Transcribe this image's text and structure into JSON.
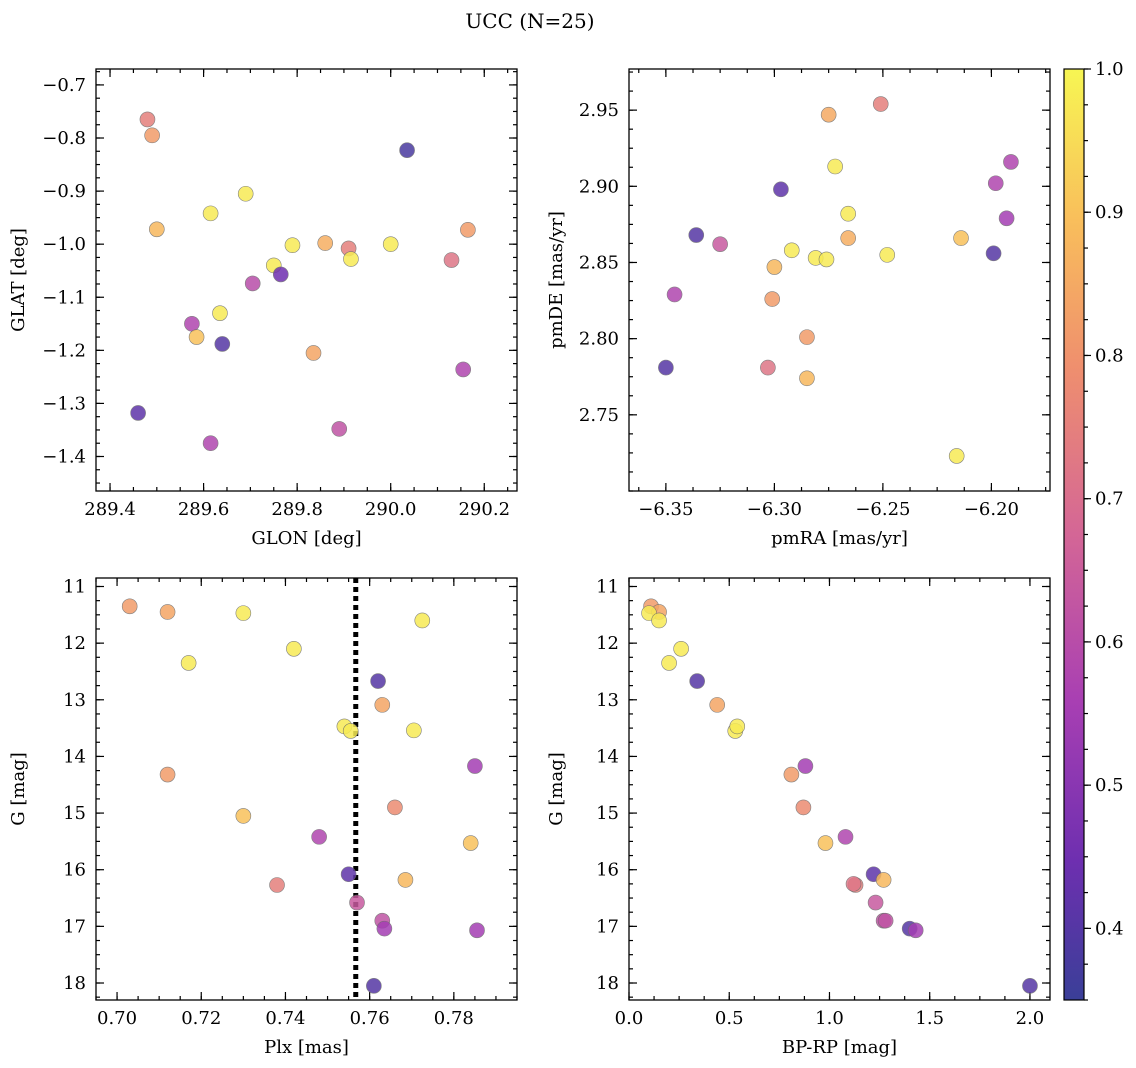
{
  "title": "UCC (N=25)",
  "colorbar": {
    "min": 0.35,
    "max": 1.0,
    "ticks": [
      "0.4",
      "0.5",
      "0.6",
      "0.7",
      "0.8",
      "0.9",
      "1.0"
    ],
    "tick_values": [
      0.4,
      0.5,
      0.6,
      0.7,
      0.8,
      0.9,
      1.0
    ],
    "colormap": "plasma"
  },
  "chart_data": [
    {
      "type": "scatter",
      "xlabel": "GLON [deg]",
      "ylabel": "GLAT [deg]",
      "xlim": [
        289.37,
        290.27
      ],
      "ylim": [
        -1.465,
        -0.67
      ],
      "xticks": [
        289.4,
        289.6,
        289.8,
        290.0,
        290.2
      ],
      "xtick_labels": [
        "289.4",
        "289.6",
        "289.8",
        "290.0",
        "290.2"
      ],
      "yticks": [
        -1.4,
        -1.3,
        -1.2,
        -1.1,
        -1.0,
        -0.9,
        -0.8,
        -0.7
      ],
      "ytick_labels": [
        "−1.4",
        "−1.3",
        "−1.2",
        "−1.1",
        "−1.0",
        "−0.9",
        "−0.8",
        "−0.7"
      ],
      "x": [
        289.48,
        289.49,
        289.5,
        289.46,
        289.575,
        289.585,
        289.615,
        289.615,
        289.635,
        289.64,
        289.69,
        289.705,
        289.75,
        289.765,
        289.79,
        289.835,
        289.86,
        289.89,
        289.91,
        289.915,
        290.0,
        290.035,
        290.13,
        290.155,
        290.165
      ],
      "y": [
        -0.765,
        -0.795,
        -0.972,
        -1.318,
        -1.15,
        -1.175,
        -0.942,
        -1.375,
        -1.13,
        -1.188,
        -0.905,
        -1.074,
        -1.04,
        -1.057,
        -1.002,
        -1.205,
        -0.998,
        -1.348,
        -1.008,
        -1.028,
        -1.0,
        -0.823,
        -1.03,
        -1.236,
        -0.973
      ],
      "color": [
        0.75,
        0.82,
        0.88,
        0.42,
        0.58,
        0.9,
        0.98,
        0.58,
        0.98,
        0.4,
        0.98,
        0.6,
        0.98,
        0.45,
        0.98,
        0.84,
        0.86,
        0.62,
        0.75,
        0.98,
        0.98,
        0.38,
        0.72,
        0.58,
        0.82
      ]
    },
    {
      "type": "scatter",
      "xlabel": "pmRA [mas/yr]",
      "ylabel": "pmDE [mas/yr]",
      "xlim": [
        -6.367,
        -6.173
      ],
      "ylim": [
        2.7,
        2.977
      ],
      "xticks": [
        -6.35,
        -6.3,
        -6.25,
        -6.2
      ],
      "xtick_labels": [
        "−6.35",
        "−6.30",
        "−6.25",
        "−6.20"
      ],
      "yticks": [
        2.75,
        2.8,
        2.85,
        2.9,
        2.95
      ],
      "ytick_labels": [
        "2.75",
        "2.80",
        "2.85",
        "2.90",
        "2.95"
      ],
      "x": [
        -6.35,
        -6.346,
        -6.336,
        -6.325,
        -6.303,
        -6.301,
        -6.3,
        -6.297,
        -6.292,
        -6.285,
        -6.285,
        -6.281,
        -6.276,
        -6.275,
        -6.272,
        -6.266,
        -6.266,
        -6.251,
        -6.248,
        -6.216,
        -6.214,
        -6.199,
        -6.198,
        -6.193,
        -6.191
      ],
      "y": [
        2.781,
        2.829,
        2.868,
        2.862,
        2.781,
        2.826,
        2.847,
        2.898,
        2.858,
        2.801,
        2.774,
        2.853,
        2.852,
        2.947,
        2.913,
        2.882,
        2.866,
        2.954,
        2.855,
        2.723,
        2.866,
        2.856,
        2.902,
        2.879,
        2.916
      ],
      "color": [
        0.4,
        0.58,
        0.4,
        0.64,
        0.72,
        0.82,
        0.88,
        0.42,
        0.98,
        0.82,
        0.88,
        0.98,
        0.98,
        0.85,
        0.98,
        0.98,
        0.86,
        0.75,
        0.98,
        0.98,
        0.9,
        0.4,
        0.58,
        0.55,
        0.58
      ]
    },
    {
      "type": "scatter",
      "xlabel": "Plx [mas]",
      "ylabel": "G [mag]",
      "xlim": [
        0.695,
        0.795
      ],
      "ylim": [
        18.3,
        10.85
      ],
      "xticks": [
        0.7,
        0.72,
        0.74,
        0.76,
        0.78
      ],
      "xtick_labels": [
        "0.70",
        "0.72",
        "0.74",
        "0.76",
        "0.78"
      ],
      "yticks": [
        11,
        12,
        13,
        14,
        15,
        16,
        17,
        18
      ],
      "ytick_labels": [
        "11",
        "12",
        "13",
        "14",
        "15",
        "16",
        "17",
        "18"
      ],
      "vline": 0.7567,
      "x": [
        0.703,
        0.712,
        0.712,
        0.717,
        0.73,
        0.73,
        0.738,
        0.742,
        0.748,
        0.754,
        0.755,
        0.7555,
        0.757,
        0.761,
        0.762,
        0.763,
        0.763,
        0.7635,
        0.766,
        0.7685,
        0.7705,
        0.7725,
        0.784,
        0.785,
        0.7855
      ],
      "y": [
        11.35,
        11.45,
        14.32,
        12.35,
        11.47,
        15.05,
        16.27,
        12.1,
        15.42,
        13.47,
        16.08,
        13.55,
        16.58,
        18.05,
        12.67,
        13.09,
        16.9,
        17.04,
        14.9,
        16.18,
        13.54,
        11.6,
        15.53,
        14.17,
        17.07
      ],
      "color": [
        0.82,
        0.84,
        0.82,
        0.98,
        0.98,
        0.9,
        0.75,
        0.98,
        0.58,
        0.98,
        0.42,
        0.98,
        0.64,
        0.4,
        0.4,
        0.84,
        0.62,
        0.55,
        0.78,
        0.88,
        0.98,
        0.98,
        0.9,
        0.55,
        0.55
      ]
    },
    {
      "type": "scatter",
      "xlabel": "BP-RP [mag]",
      "ylabel": "G [mag]",
      "xlim": [
        0.0,
        2.1
      ],
      "ylim": [
        18.3,
        10.85
      ],
      "xticks": [
        0.0,
        0.5,
        1.0,
        1.5,
        2.0
      ],
      "xtick_labels": [
        "0.0",
        "0.5",
        "1.0",
        "1.5",
        "2.0"
      ],
      "yticks": [
        11,
        12,
        13,
        14,
        15,
        16,
        17,
        18
      ],
      "ytick_labels": [
        "11",
        "12",
        "13",
        "14",
        "15",
        "16",
        "17",
        "18"
      ],
      "x": [
        0.11,
        0.15,
        0.1,
        0.15,
        0.2,
        0.26,
        0.34,
        0.44,
        0.53,
        0.54,
        0.81,
        0.88,
        0.87,
        0.98,
        1.08,
        1.13,
        1.12,
        1.22,
        1.27,
        1.27,
        1.23,
        1.28,
        1.4,
        1.43,
        2.0
      ],
      "y": [
        11.35,
        11.45,
        11.47,
        11.6,
        12.35,
        12.1,
        12.67,
        13.09,
        13.55,
        13.47,
        14.32,
        14.17,
        14.9,
        15.53,
        15.42,
        16.27,
        16.25,
        16.08,
        16.18,
        16.9,
        16.58,
        16.9,
        17.04,
        17.07,
        18.05
      ],
      "color": [
        0.82,
        0.84,
        0.98,
        0.98,
        0.98,
        0.98,
        0.4,
        0.84,
        0.98,
        0.98,
        0.82,
        0.55,
        0.78,
        0.9,
        0.58,
        0.75,
        0.72,
        0.42,
        0.88,
        0.62,
        0.64,
        0.62,
        0.4,
        0.55,
        0.4
      ]
    }
  ]
}
